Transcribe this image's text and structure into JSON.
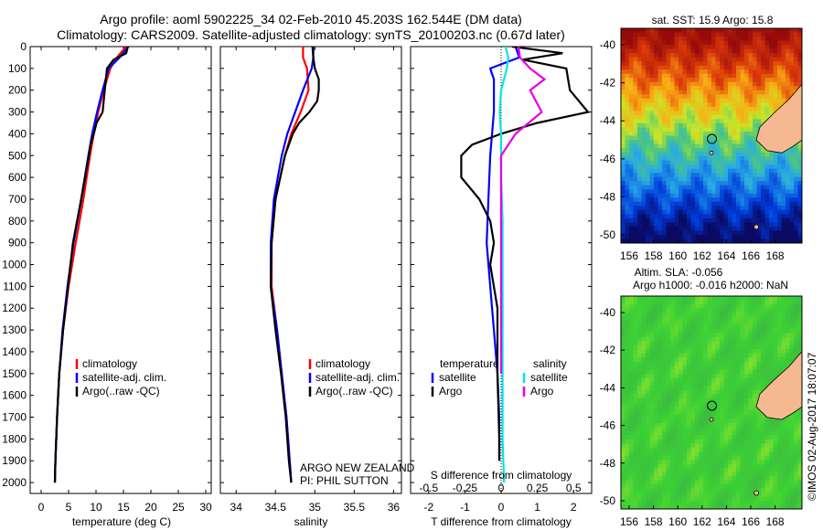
{
  "figure": {
    "title_line1": "Argo profile: aoml 5902225_34 02-Feb-2010 45.203S 162.544E (DM data)",
    "title_line2": "Climatology: CARS2009. Satellite-adjusted climatology: synTS_20100203.nc (0.67d later)",
    "timestamp": "©IMOS 02-Aug-2017 18:07:07",
    "float_info": [
      "ARGO NEW ZEALAND",
      "PI: PHIL SUTTON"
    ]
  },
  "colors": {
    "climatology": "#ff0000",
    "satellite": "#0000ff",
    "argo": "#000000",
    "sat_salinity": "#00e6e6",
    "argo_salinity": "#e600e6",
    "land": "#f5b890"
  },
  "chart_data": [
    {
      "type": "line",
      "xlabel": "temperature (deg C)",
      "ylabel": "",
      "xlim": [
        -2,
        31
      ],
      "ylim": [
        2050,
        0
      ],
      "xticks": [
        "0",
        "5",
        "10",
        "15",
        "20",
        "25",
        "30"
      ],
      "yticks": [
        "0",
        "100",
        "200",
        "300",
        "400",
        "500",
        "600",
        "700",
        "800",
        "900",
        "1000",
        "1100",
        "1200",
        "1300",
        "1400",
        "1500",
        "1600",
        "1700",
        "1800",
        "1900",
        "2000"
      ],
      "legend": [
        "climatology",
        "satellite-adj. clim.",
        "Argo(..raw -QC)"
      ],
      "series": [
        {
          "name": "climatology",
          "color": "#ff0000",
          "depth": [
            0,
            50,
            100,
            200,
            300,
            400,
            500,
            700,
            900,
            1100,
            1300,
            1500,
            1700,
            1900,
            2000
          ],
          "values": [
            15.5,
            13.8,
            12.6,
            11.4,
            10.4,
            9.6,
            8.9,
            7.7,
            6.3,
            5.0,
            4.0,
            3.3,
            2.9,
            2.6,
            2.5
          ]
        },
        {
          "name": "satellite-adj. clim.",
          "color": "#0000ff",
          "depth": [
            0,
            50,
            100,
            200,
            300,
            400,
            500,
            700,
            900,
            1100,
            1300,
            1500,
            1700,
            1900,
            2000
          ],
          "values": [
            15.9,
            14.3,
            12.3,
            11.2,
            10.2,
            9.3,
            8.6,
            7.3,
            5.9,
            4.8,
            3.9,
            3.3,
            2.9,
            2.6,
            2.5
          ]
        },
        {
          "name": "Argo(..raw -QC)",
          "color": "#000000",
          "depth": [
            0,
            30,
            60,
            100,
            200,
            300,
            350,
            400,
            450,
            500,
            700,
            900,
            1100,
            1300,
            1500,
            1700,
            1900,
            2000
          ],
          "values": [
            15.8,
            15.5,
            13.2,
            12.0,
            11.6,
            11.2,
            10.1,
            9.6,
            9.0,
            8.7,
            7.3,
            5.8,
            4.9,
            4.0,
            3.3,
            2.9,
            2.6,
            2.5
          ]
        }
      ]
    },
    {
      "type": "line",
      "xlabel": "salinity",
      "ylabel": "",
      "xlim": [
        33.8,
        36.1
      ],
      "ylim": [
        2050,
        0
      ],
      "xticks": [
        "34",
        "34.5",
        "35",
        "35.5",
        "36"
      ],
      "legend": [
        "climatology",
        "satellite-adj. clim.",
        "Argo(..raw -QC)"
      ],
      "series": [
        {
          "name": "climatology",
          "color": "#ff0000",
          "depth": [
            0,
            50,
            100,
            200,
            300,
            400,
            500,
            700,
            900,
            1100,
            1300,
            1500,
            1700,
            1900,
            2000
          ],
          "values": [
            34.85,
            34.85,
            34.9,
            34.92,
            34.82,
            34.7,
            34.62,
            34.5,
            34.45,
            34.45,
            34.52,
            34.58,
            34.64,
            34.68,
            34.7
          ]
        },
        {
          "name": "satellite-adj. clim.",
          "color": "#0000ff",
          "depth": [
            0,
            50,
            100,
            200,
            300,
            400,
            500,
            700,
            900,
            1100,
            1300,
            1500,
            1700,
            1900,
            2000
          ],
          "values": [
            34.98,
            34.98,
            34.96,
            34.85,
            34.75,
            34.65,
            34.58,
            34.48,
            34.44,
            34.44,
            34.52,
            34.58,
            34.64,
            34.68,
            34.7
          ]
        },
        {
          "name": "Argo(..raw -QC)",
          "color": "#000000",
          "depth": [
            0,
            50,
            100,
            150,
            200,
            250,
            300,
            350,
            400,
            500,
            700,
            900,
            1100,
            1300,
            1500,
            1700,
            1900,
            2000
          ],
          "values": [
            34.97,
            34.98,
            35.0,
            35.05,
            35.05,
            35.03,
            34.93,
            34.8,
            34.72,
            34.62,
            34.5,
            34.45,
            34.44,
            34.5,
            34.57,
            34.63,
            34.67,
            34.7
          ]
        }
      ]
    },
    {
      "type": "line",
      "xlabel": "T difference from climatology",
      "x2label": "S difference from climatology",
      "xlim": [
        -2.5,
        2.5
      ],
      "x2lim": [
        -0.625,
        0.625
      ],
      "ylim": [
        2050,
        0
      ],
      "xticks": [
        "-2",
        "-1",
        "0",
        "1",
        "2"
      ],
      "x2ticks": [
        "-0.5",
        "-0.25",
        "0",
        "0.25",
        "0.5"
      ],
      "legend_groups": [
        {
          "title": "temperature",
          "items": [
            "satellite",
            "Argo"
          ]
        },
        {
          "title": "salinity",
          "items": [
            "satellite",
            "Argo"
          ]
        }
      ],
      "series": [
        {
          "name": "temperature satellite",
          "color": "#0000ff",
          "depth": [
            0,
            50,
            100,
            150,
            200,
            300,
            400,
            500,
            700,
            900,
            1100,
            1300,
            1500,
            1700,
            1900
          ],
          "values": [
            0.4,
            0.5,
            -0.3,
            -0.2,
            -0.2,
            -0.2,
            -0.25,
            -0.3,
            -0.35,
            -0.4,
            -0.3,
            -0.2,
            -0.1,
            -0.05,
            -0.05
          ]
        },
        {
          "name": "temperature Argo",
          "color": "#000000",
          "depth": [
            0,
            30,
            60,
            100,
            200,
            300,
            350,
            400,
            450,
            500,
            600,
            700,
            800,
            900,
            1000,
            1200,
            1500,
            1800,
            1900
          ],
          "values": [
            0.3,
            1.7,
            0.6,
            1.8,
            1.9,
            2.4,
            1.0,
            0.0,
            -0.8,
            -1.1,
            -1.1,
            -0.6,
            -0.3,
            -0.2,
            -0.3,
            -0.1,
            -0.1,
            -0.05,
            -0.05
          ]
        },
        {
          "name": "salinity satellite",
          "color": "#00e6e6",
          "depth": [
            0,
            50,
            100,
            200,
            300,
            400,
            600,
            800,
            1000,
            1200,
            1400,
            1600,
            1800,
            2000
          ],
          "values": [
            0.03,
            0.05,
            0.04,
            0.0,
            -0.01,
            0.0,
            0.0,
            0.01,
            0.01,
            0.01,
            0.01,
            0.01,
            0.01,
            0.02
          ]
        },
        {
          "name": "salinity Argo",
          "color": "#e600e6",
          "depth": [
            0,
            50,
            100,
            150,
            200,
            300,
            400,
            500,
            700,
            900,
            1100,
            1300,
            1500
          ],
          "values": [
            0.12,
            0.13,
            0.2,
            0.3,
            0.2,
            0.28,
            0.1,
            0.0,
            0.0,
            0.0,
            0.0,
            0.0,
            0.0
          ]
        }
      ]
    },
    {
      "type": "heatmap",
      "title": "sat. SST: 15.9 Argo: 15.8",
      "xticks": [
        "156",
        "158",
        "160",
        "162",
        "164",
        "166",
        "168"
      ],
      "yticks": [
        "-40",
        "-42",
        "-44",
        "-46",
        "-48",
        "-50"
      ]
    },
    {
      "type": "heatmap",
      "title_line1": "Altim. SLA: -0.056",
      "title_line2": "Argo h1000: -0.016 h2000: NaN",
      "xticks": [
        "156",
        "158",
        "160",
        "162",
        "164",
        "166",
        "168"
      ],
      "yticks": [
        "-40",
        "-42",
        "-44",
        "-46",
        "-48",
        "-50"
      ]
    }
  ]
}
